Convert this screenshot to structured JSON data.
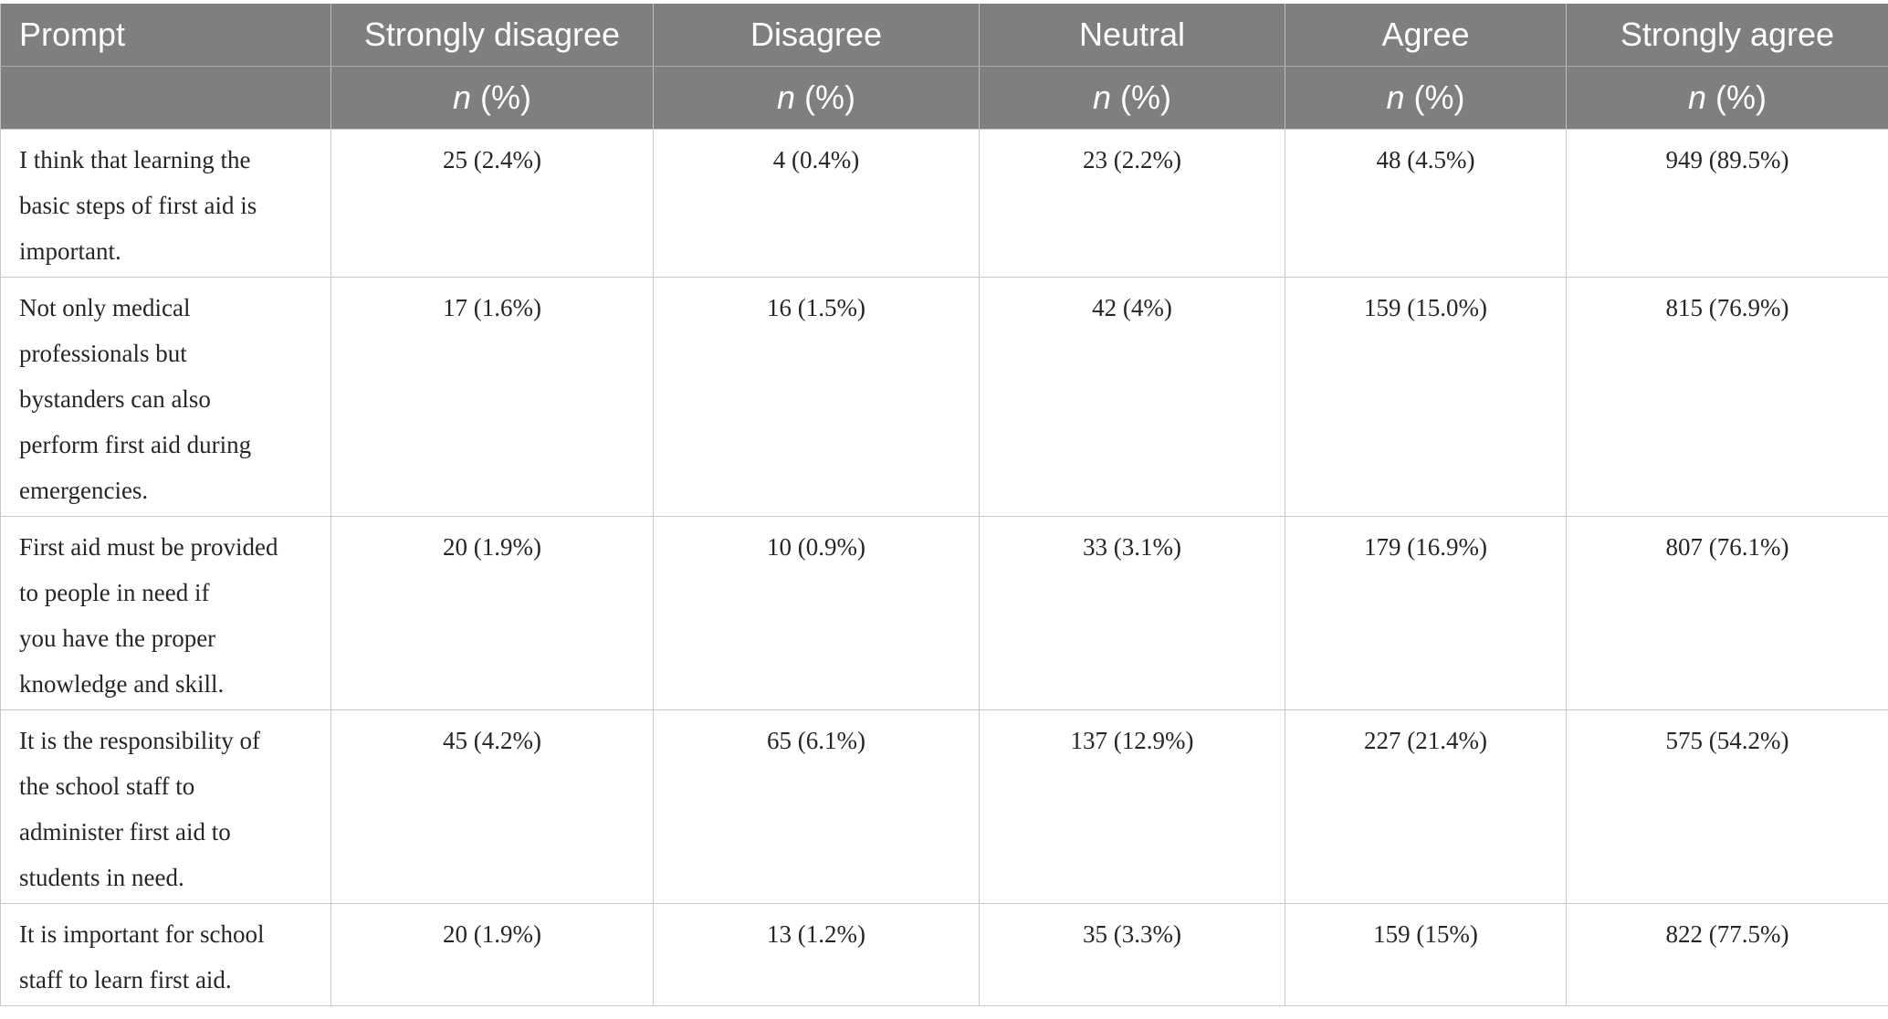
{
  "header": {
    "columns": [
      "Prompt",
      "Strongly disagree",
      "Disagree",
      "Neutral",
      "Agree",
      "Strongly agree"
    ],
    "unit_n": "n",
    "unit_pct": " (%)"
  },
  "rows": [
    {
      "prompt_lines": [
        "I think that learning the",
        "basic steps of first aid is",
        "important."
      ],
      "values": [
        "25 (2.4%)",
        "4 (0.4%)",
        "23 (2.2%)",
        "48 (4.5%)",
        "949 (89.5%)"
      ]
    },
    {
      "prompt_lines": [
        "Not only medical",
        "professionals but",
        "bystanders can also",
        "perform first aid during",
        "emergencies."
      ],
      "values": [
        "17 (1.6%)",
        "16 (1.5%)",
        "42 (4%)",
        "159 (15.0%)",
        "815 (76.9%)"
      ]
    },
    {
      "prompt_lines": [
        "First aid must be provided",
        "to people in need if",
        "you have the proper",
        "knowledge and skill."
      ],
      "values": [
        "20 (1.9%)",
        "10 (0.9%)",
        "33 (3.1%)",
        "179 (16.9%)",
        "807 (76.1%)"
      ]
    },
    {
      "prompt_lines": [
        "It is the responsibility of",
        "the school staff to",
        "administer first aid to",
        "students in need."
      ],
      "values": [
        "45 (4.2%)",
        "65 (6.1%)",
        "137 (12.9%)",
        "227 (21.4%)",
        "575 (54.2%)"
      ]
    },
    {
      "prompt_lines": [
        "It is important for school",
        "staff to learn first aid."
      ],
      "values": [
        "20 (1.9%)",
        "13 (1.2%)",
        "35 (3.3%)",
        "159 (15%)",
        "822 (77.5%)"
      ]
    }
  ]
}
